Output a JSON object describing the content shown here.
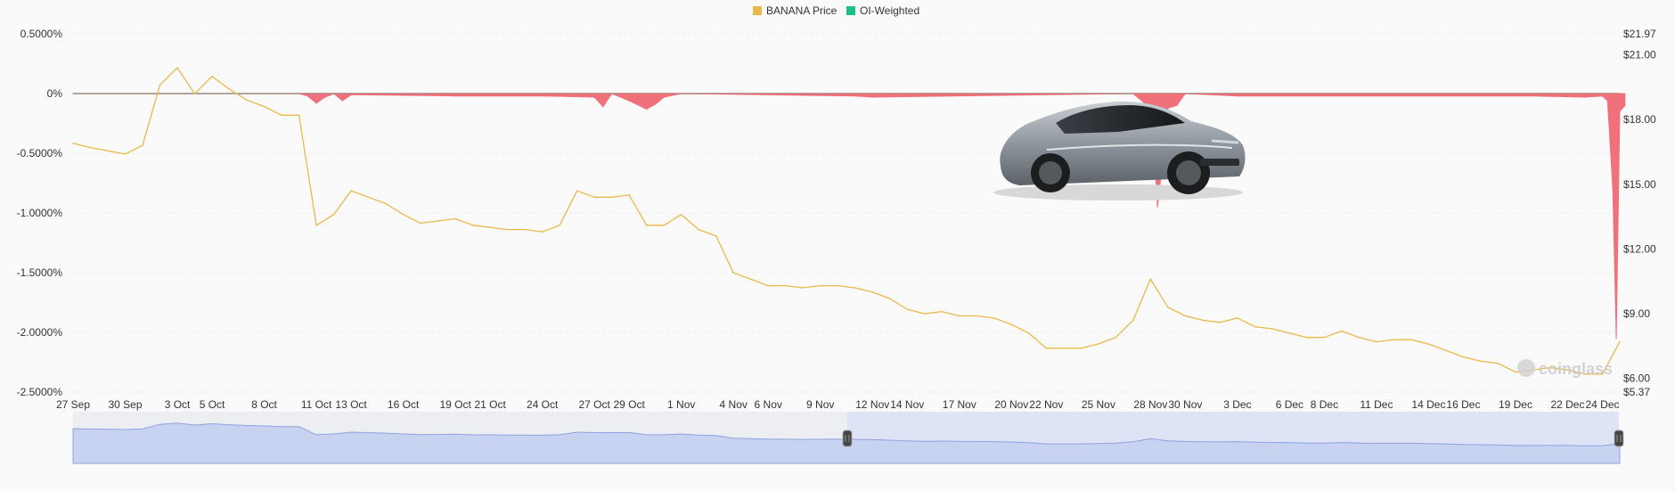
{
  "chart_data": {
    "type": "line",
    "legend": [
      {
        "name": "BANANA Price",
        "color": "#e9b949"
      },
      {
        "name": "OI-Weighted",
        "color": "#1fbf86"
      }
    ],
    "legend_position": "top-center",
    "left_axis": {
      "ticks": [
        "0.5000%",
        "0%",
        "-0.5000%",
        "-1.0000%",
        "-1.5000%",
        "-2.0000%",
        "-2.5000%"
      ],
      "tick_values": [
        0.5,
        0,
        -0.5,
        -1.0,
        -1.5,
        -2.0,
        -2.5
      ],
      "ylim": [
        -2.5,
        0.5
      ],
      "unit": "%"
    },
    "right_axis": {
      "ticks": [
        "$21.97",
        "$21.00",
        "$18.00",
        "$15.00",
        "$12.00",
        "$9.00",
        "$6.00",
        "$5.37"
      ],
      "tick_values": [
        21.97,
        21.0,
        18.0,
        15.0,
        12.0,
        9.0,
        6.0,
        5.37
      ],
      "ylim": [
        5.37,
        21.97
      ],
      "unit": "$"
    },
    "x_ticks": [
      "27 Sep",
      "30 Sep",
      "3 Oct",
      "5 Oct",
      "8 Oct",
      "11 Oct",
      "13 Oct",
      "16 Oct",
      "19 Oct",
      "21 Oct",
      "24 Oct",
      "27 Oct",
      "29 Oct",
      "1 Nov",
      "4 Nov",
      "6 Nov",
      "9 Nov",
      "12 Nov",
      "14 Nov",
      "17 Nov",
      "20 Nov",
      "22 Nov",
      "25 Nov",
      "28 Nov",
      "30 Nov",
      "3 Dec",
      "6 Dec",
      "8 Dec",
      "11 Dec",
      "14 Dec",
      "16 Dec",
      "19 Dec",
      "22 Dec",
      "24 Dec"
    ],
    "x_range": [
      "27 Sep",
      "25 Dec"
    ],
    "grid": true,
    "series": [
      {
        "name": "BANANA Price",
        "axis": "right",
        "x": [
          "27 Sep",
          "28 Sep",
          "30 Sep",
          "1 Oct",
          "2 Oct",
          "3 Oct",
          "4 Oct",
          "5 Oct",
          "6 Oct",
          "7 Oct",
          "8 Oct",
          "9 Oct",
          "10 Oct",
          "11 Oct",
          "12 Oct",
          "13 Oct",
          "14 Oct",
          "15 Oct",
          "16 Oct",
          "17 Oct",
          "18 Oct",
          "19 Oct",
          "20 Oct",
          "21 Oct",
          "22 Oct",
          "23 Oct",
          "24 Oct",
          "25 Oct",
          "26 Oct",
          "27 Oct",
          "28 Oct",
          "29 Oct",
          "30 Oct",
          "31 Oct",
          "1 Nov",
          "2 Nov",
          "3 Nov",
          "4 Nov",
          "5 Nov",
          "6 Nov",
          "7 Nov",
          "8 Nov",
          "9 Nov",
          "10 Nov",
          "11 Nov",
          "12 Nov",
          "13 Nov",
          "14 Nov",
          "15 Nov",
          "16 Nov",
          "17 Nov",
          "18 Nov",
          "19 Nov",
          "20 Nov",
          "21 Nov",
          "22 Nov",
          "23 Nov",
          "24 Nov",
          "25 Nov",
          "26 Nov",
          "27 Nov",
          "28 Nov",
          "29 Nov",
          "30 Nov",
          "1 Dec",
          "2 Dec",
          "3 Dec",
          "4 Dec",
          "5 Dec",
          "6 Dec",
          "7 Dec",
          "8 Dec",
          "9 Dec",
          "10 Dec",
          "11 Dec",
          "12 Dec",
          "13 Dec",
          "14 Dec",
          "15 Dec",
          "16 Dec",
          "17 Dec",
          "18 Dec",
          "19 Dec",
          "20 Dec",
          "21 Dec",
          "22 Dec",
          "23 Dec",
          "24 Dec",
          "25 Dec"
        ],
        "values": [
          16.9,
          16.7,
          16.4,
          16.8,
          19.6,
          20.4,
          19.2,
          20.0,
          19.4,
          18.9,
          18.6,
          18.2,
          18.2,
          13.1,
          13.6,
          14.7,
          14.4,
          14.1,
          13.6,
          13.2,
          13.3,
          13.4,
          13.1,
          13.0,
          12.9,
          12.9,
          12.8,
          13.1,
          14.7,
          14.4,
          14.4,
          14.5,
          13.1,
          13.1,
          13.6,
          12.9,
          12.6,
          10.9,
          10.6,
          10.3,
          10.3,
          10.2,
          10.3,
          10.3,
          10.2,
          10.0,
          9.7,
          9.2,
          9.0,
          9.1,
          8.9,
          8.9,
          8.8,
          8.5,
          8.1,
          7.4,
          7.4,
          7.4,
          7.6,
          7.9,
          8.7,
          10.6,
          9.3,
          8.9,
          8.7,
          8.6,
          8.8,
          8.4,
          8.3,
          8.1,
          7.9,
          7.9,
          8.2,
          7.9,
          7.7,
          7.8,
          7.8,
          7.6,
          7.3,
          7.0,
          6.8,
          6.7,
          6.3,
          6.4,
          6.5,
          6.4,
          6.2,
          6.2,
          7.7
        ]
      },
      {
        "name": "OI-Weighted",
        "axis": "left",
        "x": [
          "27 Sep",
          "3 Oct",
          "10 Oct",
          "10.5 Oct",
          "11 Oct",
          "11.5 Oct",
          "12 Oct",
          "12.5 Oct",
          "13 Oct",
          "19 Oct",
          "24 Oct",
          "27 Oct",
          "27.5 Oct",
          "28 Oct",
          "29 Oct",
          "30 Oct",
          "30.5 Oct",
          "31 Oct",
          "1 Nov",
          "11 Nov",
          "12 Nov",
          "27 Nov",
          "28 Nov",
          "28.2 Nov",
          "28.4 Nov",
          "28.7 Nov",
          "29 Nov",
          "29.5 Nov",
          "30 Nov",
          "3 Dec",
          "11 Dec",
          "20 Dec",
          "23 Dec",
          "24 Dec",
          "24.3 Dec",
          "24.6 Dec",
          "24.8 Dec",
          "25 Dec",
          "25.3 Dec"
        ],
        "values": [
          0.0,
          0.0,
          0.0,
          -0.02,
          -0.08,
          -0.03,
          0.0,
          -0.06,
          -0.01,
          -0.02,
          -0.02,
          -0.03,
          -0.11,
          0.0,
          -0.06,
          -0.13,
          -0.09,
          -0.03,
          0.0,
          -0.02,
          -0.03,
          0.0,
          -0.12,
          -0.45,
          -0.95,
          -0.55,
          -0.12,
          -0.1,
          0.0,
          -0.02,
          -0.02,
          -0.02,
          -0.03,
          -0.02,
          -0.06,
          -0.8,
          -2.05,
          -0.15,
          -0.1
        ],
        "positive_color": "#1fbf86",
        "negative_color": "#f0626f"
      }
    ]
  },
  "overlay": {
    "image": "sports-car-image",
    "watermark": "coinglass",
    "watermark_icon": "coinglass-logo-icon"
  },
  "navigator": {
    "selected_start": "12 Nov",
    "selected_end": "25 Dec",
    "handles": [
      "left-handle",
      "right-handle"
    ]
  }
}
